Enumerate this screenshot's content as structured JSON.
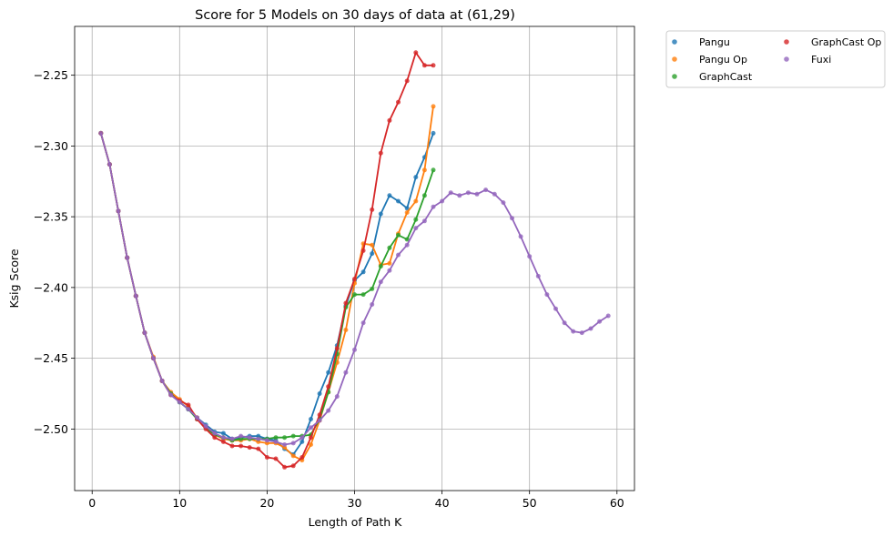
{
  "chart_data": {
    "type": "line",
    "title": "Score for 5 Models on 30 days of data at (61,29)",
    "xlabel": "Length of Path K",
    "ylabel": "Ksig Score",
    "xlim": [
      -2,
      62
    ],
    "ylim": [
      -2.5435,
      -2.2155
    ],
    "xticks": [
      0,
      10,
      20,
      30,
      40,
      50,
      60
    ],
    "yticks": [
      -2.25,
      -2.3,
      -2.35,
      -2.4,
      -2.45,
      -2.5
    ],
    "ytick_labels": [
      "−2.25",
      "−2.30",
      "−2.35",
      "−2.40",
      "−2.45",
      "−2.50"
    ],
    "grid": true,
    "legend": {
      "placement": "outside-top-right",
      "columns": 2
    },
    "series": [
      {
        "name": "Pangu",
        "color": "#1f77b4",
        "x": [
          1,
          2,
          3,
          4,
          5,
          6,
          7,
          8,
          9,
          10,
          11,
          12,
          13,
          14,
          15,
          16,
          17,
          18,
          19,
          20,
          21,
          22,
          23,
          24,
          25,
          26,
          27,
          28,
          29,
          30,
          31,
          32,
          33,
          34,
          35,
          36,
          37,
          38,
          39
        ],
        "y": [
          -2.291,
          -2.313,
          -2.346,
          -2.379,
          -2.406,
          -2.432,
          -2.45,
          -2.466,
          -2.475,
          -2.481,
          -2.486,
          -2.492,
          -2.497,
          -2.502,
          -2.503,
          -2.507,
          -2.506,
          -2.505,
          -2.505,
          -2.507,
          -2.508,
          -2.514,
          -2.518,
          -2.509,
          -2.493,
          -2.475,
          -2.46,
          -2.441,
          -2.413,
          -2.395,
          -2.389,
          -2.376,
          -2.348,
          -2.335,
          -2.339,
          -2.344,
          -2.322,
          -2.308,
          -2.291
        ]
      },
      {
        "name": "Pangu Op",
        "color": "#ff7f0e",
        "x": [
          1,
          2,
          3,
          4,
          5,
          6,
          7,
          8,
          9,
          10,
          11,
          12,
          13,
          14,
          15,
          16,
          17,
          18,
          19,
          20,
          21,
          22,
          23,
          24,
          25,
          26,
          27,
          28,
          29,
          30,
          31,
          32,
          33,
          34,
          35,
          36,
          37,
          38,
          39
        ],
        "y": [
          -2.291,
          -2.313,
          -2.346,
          -2.379,
          -2.406,
          -2.432,
          -2.449,
          -2.466,
          -2.474,
          -2.479,
          -2.484,
          -2.492,
          -2.499,
          -2.504,
          -2.507,
          -2.508,
          -2.508,
          -2.507,
          -2.509,
          -2.51,
          -2.51,
          -2.513,
          -2.519,
          -2.522,
          -2.511,
          -2.494,
          -2.474,
          -2.453,
          -2.43,
          -2.397,
          -2.369,
          -2.37,
          -2.384,
          -2.383,
          -2.362,
          -2.347,
          -2.339,
          -2.317,
          -2.272
        ]
      },
      {
        "name": "GraphCast",
        "color": "#2ca02c",
        "x": [
          1,
          2,
          3,
          4,
          5,
          6,
          7,
          8,
          9,
          10,
          11,
          12,
          13,
          14,
          15,
          16,
          17,
          18,
          19,
          20,
          21,
          22,
          23,
          24,
          25,
          26,
          27,
          28,
          29,
          30,
          31,
          32,
          33,
          34,
          35,
          36,
          37,
          38,
          39
        ],
        "y": [
          -2.291,
          -2.313,
          -2.346,
          -2.379,
          -2.406,
          -2.432,
          -2.45,
          -2.466,
          -2.475,
          -2.481,
          -2.486,
          -2.493,
          -2.499,
          -2.504,
          -2.506,
          -2.508,
          -2.507,
          -2.507,
          -2.507,
          -2.507,
          -2.506,
          -2.506,
          -2.505,
          -2.505,
          -2.504,
          -2.493,
          -2.474,
          -2.447,
          -2.414,
          -2.405,
          -2.405,
          -2.401,
          -2.385,
          -2.372,
          -2.363,
          -2.366,
          -2.352,
          -2.335,
          -2.317
        ]
      },
      {
        "name": "GraphCast Op",
        "color": "#d62728",
        "x": [
          1,
          2,
          3,
          4,
          5,
          6,
          7,
          8,
          9,
          10,
          11,
          12,
          13,
          14,
          15,
          16,
          17,
          18,
          19,
          20,
          21,
          22,
          23,
          24,
          25,
          26,
          27,
          28,
          29,
          30,
          31,
          32,
          33,
          34,
          35,
          36,
          37,
          38,
          39
        ],
        "y": [
          -2.291,
          -2.313,
          -2.346,
          -2.379,
          -2.406,
          -2.432,
          -2.45,
          -2.466,
          -2.476,
          -2.48,
          -2.483,
          -2.493,
          -2.5,
          -2.506,
          -2.509,
          -2.512,
          -2.512,
          -2.513,
          -2.514,
          -2.52,
          -2.521,
          -2.527,
          -2.526,
          -2.52,
          -2.506,
          -2.49,
          -2.47,
          -2.443,
          -2.411,
          -2.394,
          -2.374,
          -2.345,
          -2.305,
          -2.282,
          -2.269,
          -2.254,
          -2.234,
          -2.243,
          -2.243
        ]
      },
      {
        "name": "Fuxi",
        "color": "#9467bd",
        "x": [
          1,
          2,
          3,
          4,
          5,
          6,
          7,
          8,
          9,
          10,
          11,
          12,
          13,
          14,
          15,
          16,
          17,
          18,
          19,
          20,
          21,
          22,
          23,
          24,
          25,
          26,
          27,
          28,
          29,
          30,
          31,
          32,
          33,
          34,
          35,
          36,
          37,
          38,
          39,
          40,
          41,
          42,
          43,
          44,
          45,
          46,
          47,
          48,
          49,
          50,
          51,
          52,
          53,
          54,
          55,
          56,
          57,
          58,
          59
        ],
        "y": [
          -2.291,
          -2.313,
          -2.346,
          -2.379,
          -2.406,
          -2.432,
          -2.45,
          -2.466,
          -2.476,
          -2.481,
          -2.486,
          -2.492,
          -2.498,
          -2.503,
          -2.506,
          -2.507,
          -2.505,
          -2.506,
          -2.507,
          -2.508,
          -2.509,
          -2.511,
          -2.51,
          -2.506,
          -2.499,
          -2.494,
          -2.487,
          -2.477,
          -2.46,
          -2.444,
          -2.425,
          -2.412,
          -2.396,
          -2.388,
          -2.377,
          -2.37,
          -2.358,
          -2.353,
          -2.343,
          -2.339,
          -2.333,
          -2.335,
          -2.333,
          -2.334,
          -2.331,
          -2.334,
          -2.34,
          -2.351,
          -2.364,
          -2.378,
          -2.392,
          -2.405,
          -2.415,
          -2.425,
          -2.431,
          -2.432,
          -2.429,
          -2.424,
          -2.42
        ]
      }
    ]
  }
}
